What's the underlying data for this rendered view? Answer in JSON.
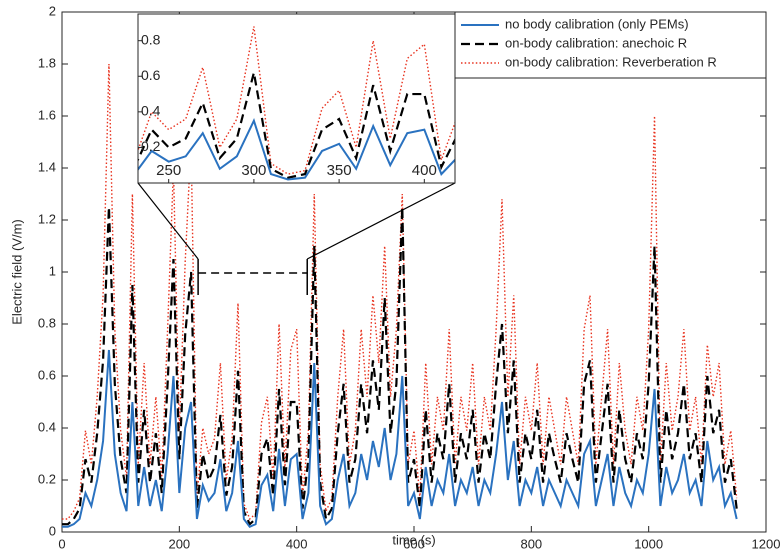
{
  "chart_data": {
    "type": "line",
    "xlabel": "time (s)",
    "ylabel": "Electric field (V/m)",
    "xlim": [
      0,
      1200
    ],
    "ylim": [
      0,
      2
    ],
    "xticks": [
      0,
      200,
      400,
      600,
      800,
      1000,
      1200
    ],
    "yticks": [
      0,
      0.2,
      0.4,
      0.6,
      0.8,
      1,
      1.2,
      1.4,
      1.6,
      1.8,
      2
    ],
    "legend": "upper right",
    "x": [
      0,
      10,
      20,
      30,
      40,
      50,
      60,
      70,
      80,
      90,
      100,
      110,
      120,
      130,
      140,
      150,
      160,
      170,
      180,
      190,
      200,
      210,
      220,
      230,
      240,
      250,
      260,
      270,
      280,
      290,
      300,
      310,
      320,
      330,
      340,
      350,
      360,
      370,
      380,
      390,
      400,
      410,
      420,
      430,
      440,
      450,
      460,
      470,
      480,
      490,
      500,
      510,
      520,
      530,
      540,
      550,
      560,
      570,
      580,
      590,
      600,
      610,
      620,
      630,
      640,
      650,
      660,
      670,
      680,
      690,
      700,
      710,
      720,
      730,
      740,
      750,
      760,
      770,
      780,
      790,
      800,
      810,
      820,
      830,
      840,
      850,
      860,
      870,
      880,
      890,
      900,
      910,
      920,
      930,
      940,
      950,
      960,
      970,
      980,
      990,
      1000,
      1010,
      1020,
      1030,
      1040,
      1050,
      1060,
      1070,
      1080,
      1090,
      1100,
      1110,
      1120,
      1130,
      1140,
      1150
    ],
    "series": [
      {
        "name": "no body calibration (only PEMs)",
        "color": "#2a72c0",
        "style": "solid",
        "values": [
          0.02,
          0.02,
          0.03,
          0.05,
          0.15,
          0.1,
          0.2,
          0.35,
          0.7,
          0.3,
          0.15,
          0.08,
          0.5,
          0.1,
          0.25,
          0.1,
          0.2,
          0.08,
          0.3,
          0.6,
          0.15,
          0.4,
          0.5,
          0.05,
          0.18,
          0.12,
          0.15,
          0.28,
          0.08,
          0.15,
          0.35,
          0.05,
          0.02,
          0.03,
          0.18,
          0.22,
          0.08,
          0.32,
          0.1,
          0.28,
          0.3,
          0.05,
          0.15,
          0.65,
          0.1,
          0.03,
          0.05,
          0.2,
          0.3,
          0.1,
          0.15,
          0.3,
          0.2,
          0.35,
          0.25,
          0.4,
          0.2,
          0.3,
          0.6,
          0.1,
          0.15,
          0.05,
          0.25,
          0.1,
          0.2,
          0.15,
          0.3,
          0.1,
          0.2,
          0.15,
          0.25,
          0.1,
          0.2,
          0.15,
          0.3,
          0.5,
          0.2,
          0.35,
          0.1,
          0.2,
          0.15,
          0.25,
          0.1,
          0.2,
          0.15,
          0.1,
          0.2,
          0.15,
          0.1,
          0.3,
          0.35,
          0.1,
          0.2,
          0.3,
          0.1,
          0.25,
          0.15,
          0.1,
          0.2,
          0.15,
          0.3,
          0.55,
          0.1,
          0.25,
          0.15,
          0.2,
          0.3,
          0.15,
          0.2,
          0.1,
          0.35,
          0.2,
          0.25,
          0.1,
          0.15,
          0.05
        ]
      },
      {
        "name": "on-body calibration: anechoic R",
        "color": "#000000",
        "style": "dashed",
        "values": [
          0.03,
          0.03,
          0.05,
          0.09,
          0.28,
          0.19,
          0.38,
          0.66,
          1.25,
          0.57,
          0.28,
          0.15,
          0.95,
          0.19,
          0.47,
          0.19,
          0.38,
          0.15,
          0.57,
          1.05,
          0.28,
          0.76,
          1.0,
          0.09,
          0.3,
          0.2,
          0.25,
          0.45,
          0.14,
          0.25,
          0.62,
          0.08,
          0.03,
          0.05,
          0.3,
          0.36,
          0.14,
          0.55,
          0.18,
          0.5,
          0.5,
          0.09,
          0.28,
          1.1,
          0.19,
          0.05,
          0.09,
          0.38,
          0.57,
          0.19,
          0.28,
          0.57,
          0.38,
          0.66,
          0.47,
          0.9,
          0.38,
          0.57,
          1.25,
          0.19,
          0.28,
          0.09,
          0.47,
          0.19,
          0.38,
          0.28,
          0.57,
          0.19,
          0.38,
          0.28,
          0.47,
          0.19,
          0.38,
          0.28,
          0.57,
          0.8,
          0.38,
          0.66,
          0.19,
          0.38,
          0.28,
          0.47,
          0.19,
          0.38,
          0.28,
          0.19,
          0.38,
          0.28,
          0.19,
          0.57,
          0.66,
          0.19,
          0.38,
          0.57,
          0.19,
          0.47,
          0.28,
          0.19,
          0.38,
          0.28,
          0.57,
          1.1,
          0.19,
          0.47,
          0.28,
          0.38,
          0.57,
          0.28,
          0.38,
          0.19,
          0.6,
          0.38,
          0.47,
          0.19,
          0.28,
          0.09
        ]
      },
      {
        "name": "on-body calibration: Reverberation R",
        "color": "#e8321e",
        "style": "dotted",
        "values": [
          0.05,
          0.05,
          0.08,
          0.13,
          0.39,
          0.26,
          0.52,
          0.91,
          1.8,
          0.78,
          0.39,
          0.21,
          1.3,
          0.26,
          0.65,
          0.26,
          0.52,
          0.21,
          0.78,
          1.4,
          0.39,
          1.04,
          1.5,
          0.13,
          0.4,
          0.3,
          0.36,
          0.65,
          0.2,
          0.36,
          0.88,
          0.11,
          0.05,
          0.07,
          0.42,
          0.52,
          0.2,
          0.8,
          0.25,
          0.7,
          0.78,
          0.13,
          0.39,
          1.3,
          0.26,
          0.08,
          0.13,
          0.52,
          0.78,
          0.26,
          0.39,
          0.78,
          0.52,
          0.91,
          0.65,
          1.1,
          0.52,
          0.78,
          1.3,
          0.26,
          0.39,
          0.13,
          0.65,
          0.26,
          0.52,
          0.39,
          0.78,
          0.26,
          0.52,
          0.39,
          0.65,
          0.26,
          0.52,
          0.39,
          0.78,
          1.28,
          0.52,
          0.91,
          0.26,
          0.52,
          0.39,
          0.65,
          0.26,
          0.52,
          0.39,
          0.26,
          0.52,
          0.39,
          0.26,
          0.78,
          0.91,
          0.26,
          0.52,
          0.78,
          0.26,
          0.65,
          0.39,
          0.26,
          0.52,
          0.39,
          0.78,
          1.6,
          0.26,
          0.65,
          0.39,
          0.52,
          0.78,
          0.39,
          0.52,
          0.26,
          0.72,
          0.52,
          0.65,
          0.26,
          0.39,
          0.13
        ]
      }
    ],
    "inset": {
      "xlim": [
        232,
        418
      ],
      "ylim": [
        0,
        0.95
      ],
      "xticks": [
        250,
        300,
        350,
        400
      ],
      "yticks": [
        0.2,
        0.4,
        0.6,
        0.8
      ]
    }
  }
}
